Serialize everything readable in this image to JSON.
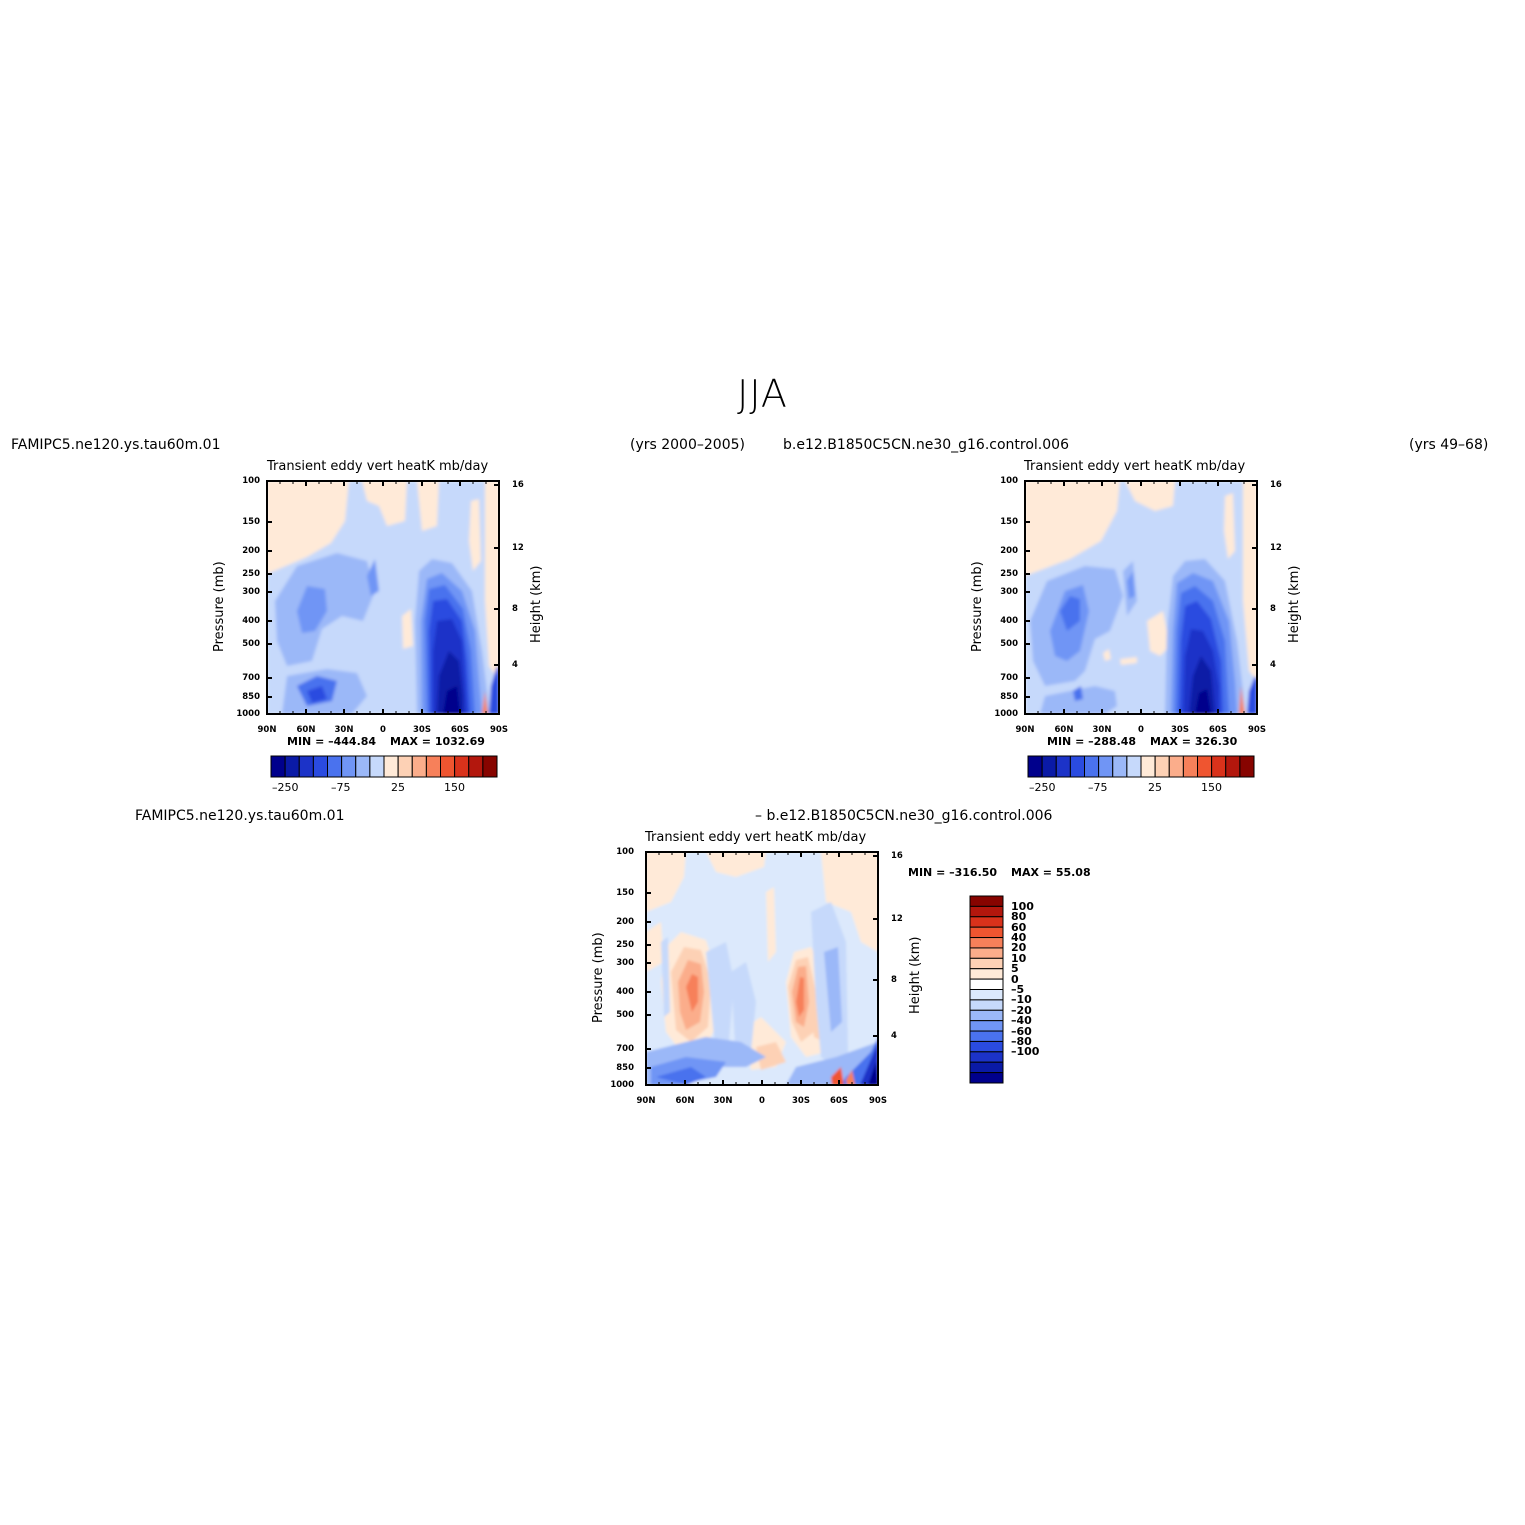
{
  "figure_title": "JJA",
  "case1": {
    "name": "FAMIPC5.ne120.ys.tau60m.01",
    "years": "(yrs 2000–2005)"
  },
  "case2": {
    "name": "b.e12.B1850C5CN.ne30_g16.control.006",
    "years": "(yrs 49–68)"
  },
  "diff_label": {
    "line1": "FAMIPC5.ne120.ys.tau60m.01",
    "line2": "– b.e12.B1850C5CN.ne30_g16.control.006"
  },
  "panel_title": "Transient  eddy  vert  heatK  mb/day",
  "axis": {
    "left_label": "Pressure  (mb)",
    "right_label": "Height  (km)",
    "pressure_ticks": [
      "100",
      "150",
      "200",
      "250",
      "300",
      "400",
      "500",
      "700",
      "850",
      "1000"
    ],
    "height_ticks": [
      "16",
      "12",
      "8",
      "4"
    ],
    "lat_ticks": [
      "90N",
      "60N",
      "30N",
      "0",
      "30S",
      "60S",
      "90S"
    ]
  },
  "colors": {
    "abs_levels": [
      "#00008c",
      "#0a1aa6",
      "#1c33c8",
      "#2a4be0",
      "#4a72ee",
      "#7095f5",
      "#9bb8f8",
      "#c6d9fb",
      "#ffead8",
      "#fdd1b5",
      "#fbad8b",
      "#f7805a",
      "#ef5530",
      "#d9321b",
      "#b3170d",
      "#870400"
    ],
    "diff_levels": [
      "#00008c",
      "#0a1aa6",
      "#1c33c8",
      "#2a4be0",
      "#4a72ee",
      "#7095f5",
      "#9bb8f8",
      "#c6d9fb",
      "#dce9fc",
      "#ffffff",
      "#ffead8",
      "#fdd1b5",
      "#fbad8b",
      "#f7805a",
      "#ef5530",
      "#d9321b",
      "#b3170d",
      "#870400"
    ]
  },
  "panels": [
    {
      "min_label": "MIN =  –444.84",
      "max_label": "MAX =  1032.69",
      "colorbar_labels": [
        "–250",
        "–75",
        "25",
        "150"
      ]
    },
    {
      "min_label": "MIN =  –288.48",
      "max_label": "MAX =  326.30",
      "colorbar_labels": [
        "–250",
        "–75",
        "25",
        "150"
      ]
    },
    {
      "min_label": "MIN =  –316.50",
      "max_label": "MAX =   55.08",
      "colorbar_labels": [
        "100",
        "80",
        "60",
        "40",
        "20",
        "10",
        "5",
        "0",
        "–5",
        "–10",
        "–20",
        "–40",
        "–60",
        "–80",
        "–100"
      ]
    }
  ],
  "chart_data": [
    {
      "type": "heatmap",
      "title": "Transient  eddy  vert  heatK  mb/day",
      "case": "FAMIPC5.ne120.ys.tau60m.01",
      "xlabel": "",
      "ylabel": "Pressure  (mb)",
      "y2label": "Height  (km)",
      "x_range": [
        "90N",
        "90S"
      ],
      "y_range": [
        100,
        1000
      ],
      "y_scale": "log",
      "min": -444.84,
      "max": 1032.69,
      "colorbar_ticks": [
        -250,
        -75,
        25,
        150
      ],
      "features": [
        {
          "lat": 55,
          "p": 400,
          "value": -50
        },
        {
          "lat": 15,
          "p": 280,
          "value": -40
        },
        {
          "lat": 60,
          "p": 800,
          "value": -120
        },
        {
          "lat": -45,
          "p": 600,
          "value": -250
        },
        {
          "lat": -45,
          "p": 300,
          "value": -125
        }
      ]
    },
    {
      "type": "heatmap",
      "title": "Transient  eddy  vert  heatK  mb/day",
      "case": "b.e12.B1850C5CN.ne30_g16.control.006",
      "xlabel": "",
      "ylabel": "Pressure  (mb)",
      "y2label": "Height  (km)",
      "x_range": [
        "90N",
        "90S"
      ],
      "y_range": [
        100,
        1000
      ],
      "y_scale": "log",
      "min": -288.48,
      "max": 326.3,
      "colorbar_ticks": [
        -250,
        -75,
        25,
        150
      ],
      "features": [
        {
          "lat": 60,
          "p": 400,
          "value": -100
        },
        {
          "lat": 20,
          "p": 280,
          "value": -40
        },
        {
          "lat": -45,
          "p": 600,
          "value": -250
        },
        {
          "lat": -45,
          "p": 300,
          "value": -125
        }
      ]
    },
    {
      "type": "heatmap",
      "title": "Transient  eddy  vert  heatK  mb/day",
      "case": "FAMIPC5.ne120.ys.tau60m.01 – b.e12.B1850C5CN.ne30_g16.control.006",
      "xlabel": "",
      "ylabel": "Pressure  (mb)",
      "y2label": "Height  (km)",
      "x_range": [
        "90N",
        "90S"
      ],
      "y_range": [
        100,
        1000
      ],
      "y_scale": "log",
      "min": -316.5,
      "max": 55.08,
      "colorbar_levels": [
        100,
        80,
        60,
        40,
        20,
        10,
        5,
        0,
        -5,
        -10,
        -20,
        -40,
        -60,
        -80,
        -100
      ],
      "features": [
        {
          "lat": 60,
          "p": 420,
          "value": 20
        },
        {
          "lat": -30,
          "p": 420,
          "value": 20
        },
        {
          "lat": 40,
          "p": 650,
          "value": -20
        },
        {
          "lat": 0,
          "p": 900,
          "value": 10
        },
        {
          "lat": -70,
          "p": 950,
          "value": -60
        }
      ]
    }
  ]
}
